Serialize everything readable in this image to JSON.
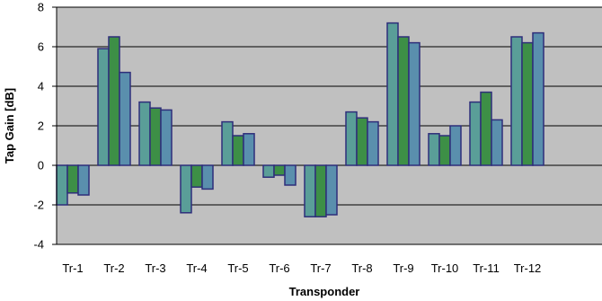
{
  "chart_data": {
    "type": "bar",
    "title": "",
    "xlabel": "Transponder",
    "ylabel": "Tap Gain [dB]",
    "ylim": [
      -4,
      8
    ],
    "yticks": [
      -4,
      -2,
      0,
      2,
      4,
      6,
      8
    ],
    "grid": true,
    "categories": [
      "Tr-1",
      "Tr-2",
      "Tr-3",
      "Tr-4",
      "Tr-5",
      "Tr-6",
      "Tr-7",
      "Tr-8",
      "Tr-9",
      "Tr-10",
      "Tr-11",
      "Tr-12"
    ],
    "series": [
      {
        "values": [
          -2.0,
          5.9,
          3.2,
          -2.4,
          2.2,
          -0.6,
          -2.6,
          2.7,
          7.2,
          1.6,
          3.2,
          6.5
        ]
      },
      {
        "values": [
          -1.4,
          6.5,
          2.9,
          -1.1,
          1.5,
          -0.5,
          -2.6,
          2.4,
          6.5,
          1.5,
          3.7,
          6.2
        ]
      },
      {
        "values": [
          -1.5,
          4.7,
          2.8,
          -1.2,
          1.6,
          -1.0,
          -2.5,
          2.2,
          6.2,
          2.0,
          2.3,
          6.7
        ]
      }
    ],
    "colors": {
      "plot_background": "#c0c0c0",
      "gridline": "#000000",
      "bar_outline": "#2e2e7a",
      "series": [
        "#5a9e98",
        "#3d8f46",
        "#5a8fad"
      ]
    }
  }
}
